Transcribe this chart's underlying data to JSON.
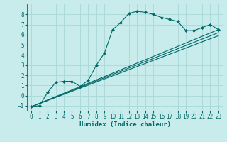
{
  "xlabel": "Humidex (Indice chaleur)",
  "bg_color": "#c8ecec",
  "grid_color": "#a8d8d8",
  "line_color": "#006868",
  "xlim": [
    -0.5,
    23.5
  ],
  "ylim": [
    -1.5,
    9.0
  ],
  "xticks": [
    0,
    1,
    2,
    3,
    4,
    5,
    6,
    7,
    8,
    9,
    10,
    11,
    12,
    13,
    14,
    15,
    16,
    17,
    18,
    19,
    20,
    21,
    22,
    23
  ],
  "yticks": [
    -1,
    0,
    1,
    2,
    3,
    4,
    5,
    6,
    7,
    8
  ],
  "line1_x": [
    0,
    1,
    2,
    3,
    4,
    5,
    6,
    7,
    8,
    9,
    10,
    11,
    12,
    13,
    14,
    15,
    16,
    17,
    18,
    19,
    20,
    21,
    22,
    23
  ],
  "line1_y": [
    -1.1,
    -1.0,
    0.3,
    1.3,
    1.4,
    1.4,
    0.9,
    1.5,
    3.0,
    4.2,
    6.5,
    7.2,
    8.1,
    8.3,
    8.2,
    8.0,
    7.7,
    7.5,
    7.3,
    6.4,
    6.4,
    6.7,
    7.0,
    6.5
  ],
  "line2_x": [
    0,
    23
  ],
  "line2_y": [
    -1.1,
    6.5
  ],
  "line3_x": [
    0,
    23
  ],
  "line3_y": [
    -1.1,
    6.2
  ],
  "line4_x": [
    0,
    23
  ],
  "line4_y": [
    -1.1,
    5.9
  ],
  "marker": "D",
  "markersize": 2.0,
  "tick_fontsize": 5.5,
  "xlabel_fontsize": 6.5,
  "linewidth": 0.8
}
